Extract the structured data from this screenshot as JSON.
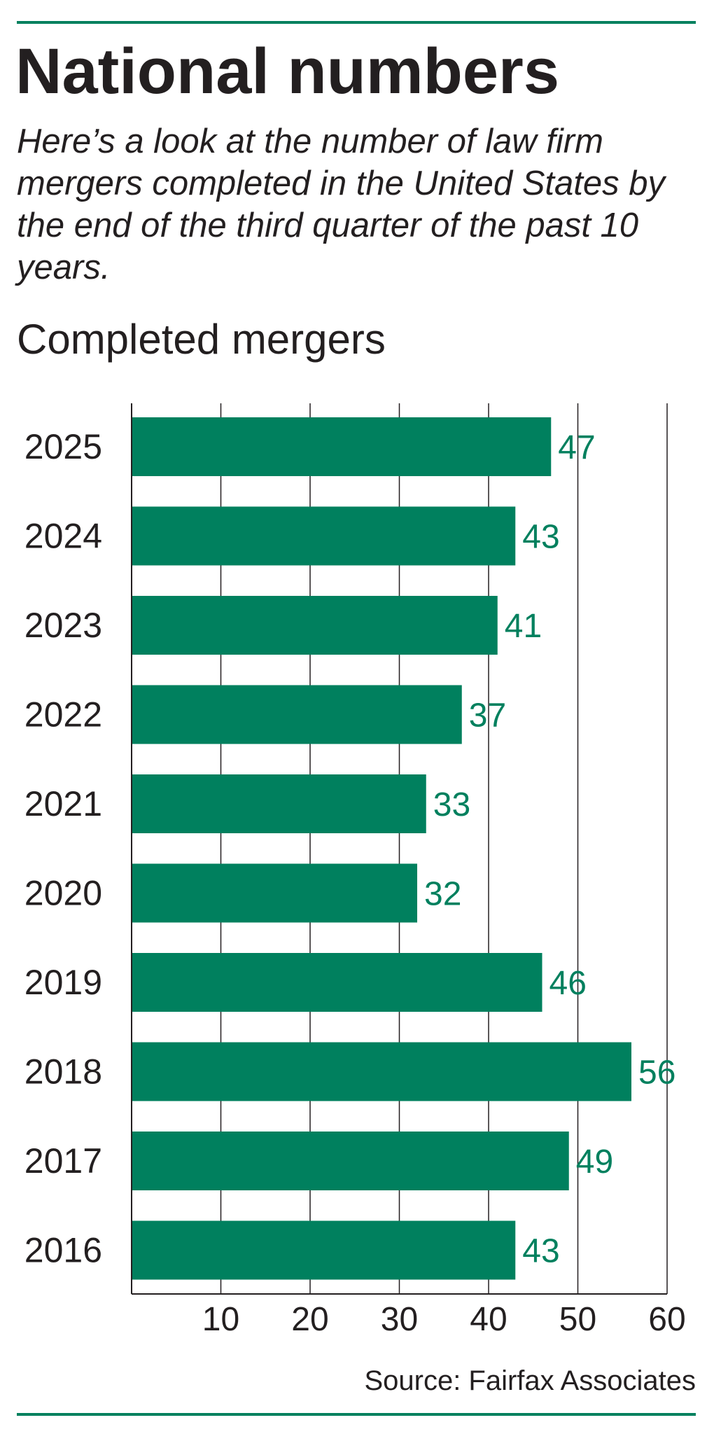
{
  "header": {
    "title": "National numbers",
    "subtitle": "Here’s a look at the number of law firm mergers completed in the United States by the end of the third quarter of the past 10 years."
  },
  "colors": {
    "accent": "#00805e",
    "text": "#231f20",
    "grid": "#231f20"
  },
  "chart_data": {
    "type": "bar",
    "orientation": "horizontal",
    "title": "Completed mergers",
    "categories": [
      "2025",
      "2024",
      "2023",
      "2022",
      "2021",
      "2020",
      "2019",
      "2018",
      "2017",
      "2016"
    ],
    "values": [
      47,
      43,
      41,
      37,
      33,
      32,
      46,
      56,
      49,
      43
    ],
    "xlim": [
      0,
      60
    ],
    "xticks": [
      10,
      20,
      30,
      40,
      50,
      60
    ],
    "xlabel": "",
    "ylabel": "",
    "grid": true,
    "legend": "none",
    "data_labels": true
  },
  "footer": {
    "source": "Source: Fairfax Associates"
  }
}
